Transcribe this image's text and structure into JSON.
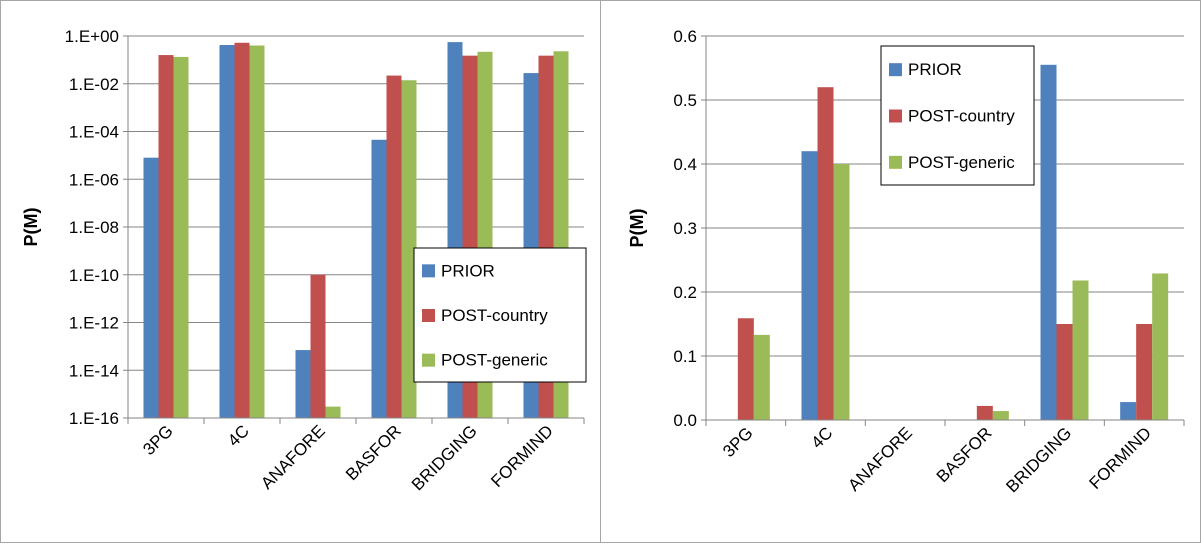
{
  "chart_data": [
    {
      "type": "bar",
      "scale": "log",
      "ylabel": "P(M)",
      "categories": [
        "3PG",
        "4C",
        "ANAFORE",
        "BASFOR",
        "BRIDGING",
        "FORMIND"
      ],
      "yticks": [
        "1.E+00",
        "1.E-02",
        "1.E-04",
        "1.E-06",
        "1.E-08",
        "1.E-10",
        "1.E-12",
        "1.E-14",
        "1.E-16"
      ],
      "ylim": [
        1e-16,
        1
      ],
      "legend_position": "bottom-right",
      "grid": true,
      "series": [
        {
          "name": "PRIOR",
          "color": "#4f81bd",
          "values": [
            8e-06,
            0.42,
            7e-14,
            4.5e-05,
            0.555,
            0.028
          ]
        },
        {
          "name": "POST-country",
          "color": "#c0504d",
          "values": [
            0.159,
            0.52,
            1e-10,
            0.022,
            0.15,
            0.15
          ]
        },
        {
          "name": "POST-generic",
          "color": "#9bbb59",
          "values": [
            0.133,
            0.4,
            3e-16,
            0.014,
            0.218,
            0.229
          ]
        }
      ]
    },
    {
      "type": "bar",
      "scale": "linear",
      "ylabel": "P(M)",
      "categories": [
        "3PG",
        "4C",
        "ANAFORE",
        "BASFOR",
        "BRIDGING",
        "FORMIND"
      ],
      "yticks": [
        "0.6",
        "0.5",
        "0.4",
        "0.3",
        "0.2",
        "0.1",
        "0.0"
      ],
      "ylim": [
        0,
        0.6
      ],
      "legend_position": "top-right",
      "grid": true,
      "series": [
        {
          "name": "PRIOR",
          "color": "#4f81bd",
          "values": [
            0.0,
            0.42,
            0.0,
            0.0,
            0.555,
            0.028
          ]
        },
        {
          "name": "POST-country",
          "color": "#c0504d",
          "values": [
            0.159,
            0.52,
            0.0,
            0.022,
            0.15,
            0.15
          ]
        },
        {
          "name": "POST-generic",
          "color": "#9bbb59",
          "values": [
            0.133,
            0.4,
            0.0,
            0.014,
            0.218,
            0.229
          ]
        }
      ]
    }
  ]
}
